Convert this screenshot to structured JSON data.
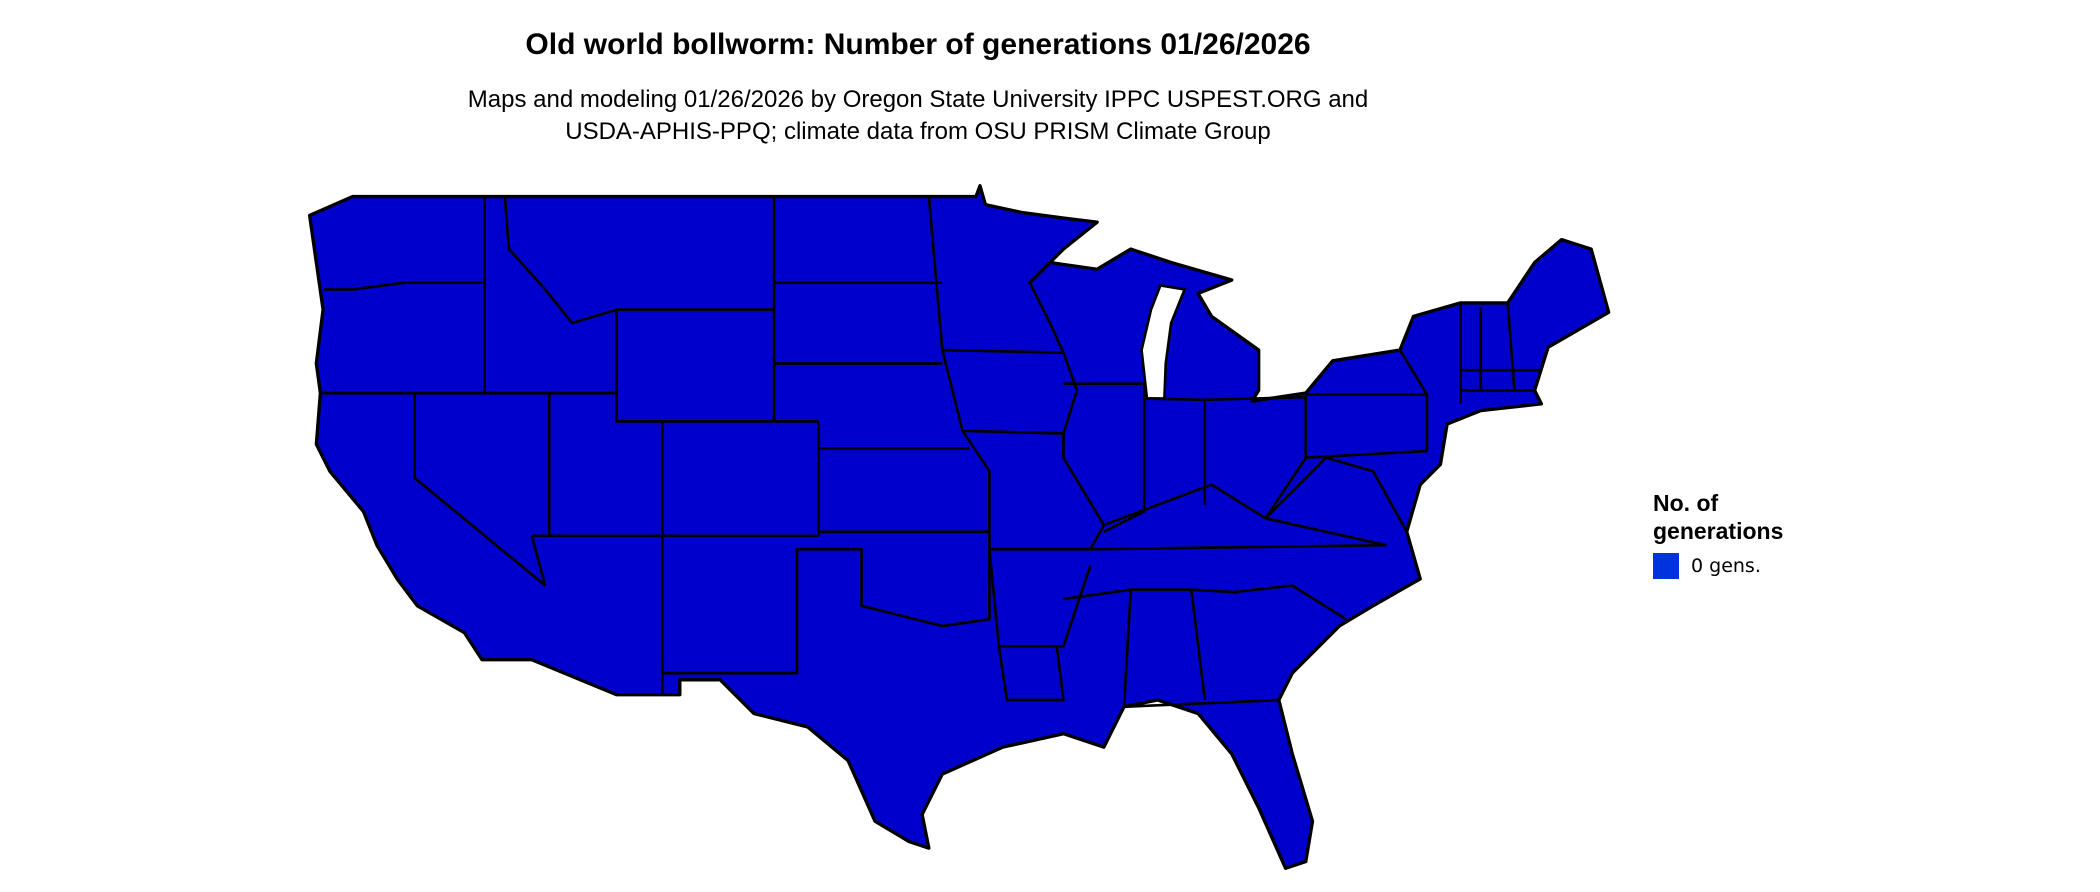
{
  "title": "Old world bollworm: Number of generations 01/26/2026",
  "subtitle": {
    "line1": "Maps and modeling 01/26/2026 by Oregon State University IPPC USPEST.ORG and",
    "line2": "USDA-APHIS-PPQ; climate data from OSU PRISM Climate Group"
  },
  "map": {
    "region": "Contiguous United States (state boundaries)",
    "fill_color": "#0000CC",
    "border_color": "#000000"
  },
  "legend": {
    "title_line1": "No. of",
    "title_line2": "generations",
    "items": [
      {
        "label": "0 gens.",
        "color": "#0033DD"
      }
    ]
  }
}
